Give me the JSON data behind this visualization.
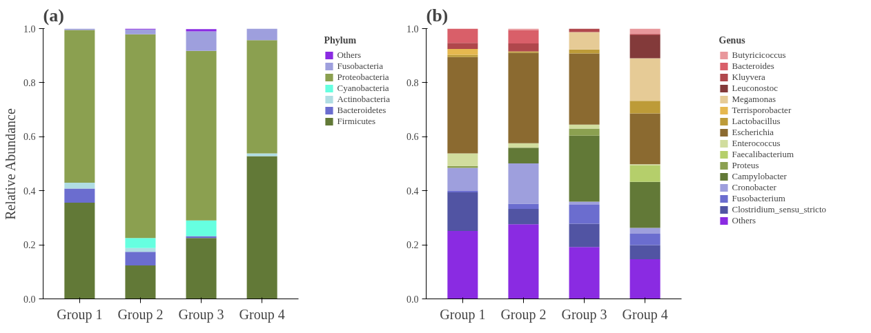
{
  "chart_data": [
    {
      "type": "bar",
      "title": "(a)",
      "ylabel": "Relative Abundance",
      "legend_title": "Phylum",
      "stacked": true,
      "legend": "right",
      "grid": false,
      "categories": [
        "Group 1",
        "Group 2",
        "Group 3",
        "Group 4"
      ],
      "ylim": [
        0,
        1.0
      ],
      "yticks": [
        {
          "value": 0,
          "label": "0.0"
        },
        {
          "value": 0.2,
          "label": "0.2"
        },
        {
          "value": 0.4,
          "label": "0.4"
        },
        {
          "value": 0.6,
          "label": "0.6"
        },
        {
          "value": 0.8,
          "label": "0.8"
        },
        {
          "value": 1.0,
          "label": "1.0"
        }
      ],
      "series": [
        {
          "name": "Firmicutes",
          "color": "#627937",
          "values": [
            0.356,
            0.124,
            0.225,
            0.528
          ]
        },
        {
          "name": "Bacteroidetes",
          "color": "#6b6dcf",
          "values": [
            0.052,
            0.05,
            0.007,
            0
          ]
        },
        {
          "name": "Actinobacteria",
          "color": "#b0dde3",
          "values": [
            0.022,
            0.014,
            null,
            0.01
          ]
        },
        {
          "name": "Cyanobacteria",
          "color": "#66ffe0",
          "values": [
            0,
            0.037,
            0.058,
            0
          ]
        },
        {
          "name": "Proteobacteria",
          "color": "#8ba050",
          "values": [
            0.565,
            0.754,
            0.628,
            0.419
          ]
        },
        {
          "name": "Fusobacteria",
          "color": "#9e9fdd",
          "values": [
            0.005,
            0.018,
            0.072,
            0.043
          ]
        },
        {
          "name": "Others",
          "color": "#8a2be2",
          "values": [
            0,
            0.003,
            0.008,
            0
          ]
        }
      ]
    },
    {
      "type": "bar",
      "title": "(b)",
      "legend_title": "Genus",
      "stacked": true,
      "legend": "right",
      "grid": false,
      "categories": [
        "Group 1",
        "Group 2",
        "Group 3",
        "Group 4"
      ],
      "ylim": [
        0,
        1.0
      ],
      "yticks": [
        {
          "value": 0,
          "label": "0.0"
        },
        {
          "value": 0.2,
          "label": "0.2"
        },
        {
          "value": 0.4,
          "label": "0.4"
        },
        {
          "value": 0.6,
          "label": "0.6"
        },
        {
          "value": 0.8,
          "label": "0.8"
        },
        {
          "value": 1.0,
          "label": "1.0"
        }
      ],
      "series": [
        {
          "name": "Others",
          "color": "#8a2be2",
          "values": [
            0.251,
            0.276,
            0.192,
            0.147
          ]
        },
        {
          "name": "Clostridium_sensu_stricto",
          "color": "#5154a3",
          "values": [
            0.143,
            0.057,
            0.086,
            0.052
          ]
        },
        {
          "name": "Fusobacterium",
          "color": "#6b6dcf",
          "values": [
            0.005,
            0.019,
            0.07,
            0.042
          ]
        },
        {
          "name": "Cronobacter",
          "color": "#9e9fdd",
          "values": [
            0.086,
            0.149,
            0.012,
            0.022
          ]
        },
        {
          "name": "Campylobacter",
          "color": "#627937",
          "values": [
            0,
            0.058,
            0.244,
            0.17
          ]
        },
        {
          "name": "Proteus",
          "color": "#8ba050",
          "values": [
            0.007,
            0,
            0.026,
            0
          ]
        },
        {
          "name": "Faecalibacterium",
          "color": "#b5cf6b",
          "values": [
            0,
            0,
            0,
            0.062
          ]
        },
        {
          "name": "Enterococcus",
          "color": "#d1dd9e",
          "values": [
            0.046,
            0.017,
            0.015,
            0.003
          ]
        },
        {
          "name": "Escherichia",
          "color": "#8b6a30",
          "values": [
            0.357,
            0.335,
            0.263,
            0.188
          ]
        },
        {
          "name": "Lactobacillus",
          "color": "#bd9b38",
          "values": [
            0.008,
            0.005,
            0.015,
            0.047
          ]
        },
        {
          "name": "Terrisporobacter",
          "color": "#e6b84f",
          "values": [
            0.022,
            0,
            0,
            0
          ]
        },
        {
          "name": "Megamonas",
          "color": "#e6cb96",
          "values": [
            0,
            0,
            0.064,
            0.157
          ]
        },
        {
          "name": "Leuconostoc",
          "color": "#833a3a",
          "values": [
            0,
            0,
            0,
            0.086
          ]
        },
        {
          "name": "Kluyvera",
          "color": "#b0474c",
          "values": [
            0.022,
            0.029,
            0.013,
            0.004
          ]
        },
        {
          "name": "Bacteroides",
          "color": "#d95f69",
          "values": [
            0.053,
            0.05,
            0,
            0
          ]
        },
        {
          "name": "Butyricicoccus",
          "color": "#e8979b",
          "values": [
            0,
            0.005,
            0,
            0.02
          ]
        }
      ]
    }
  ]
}
